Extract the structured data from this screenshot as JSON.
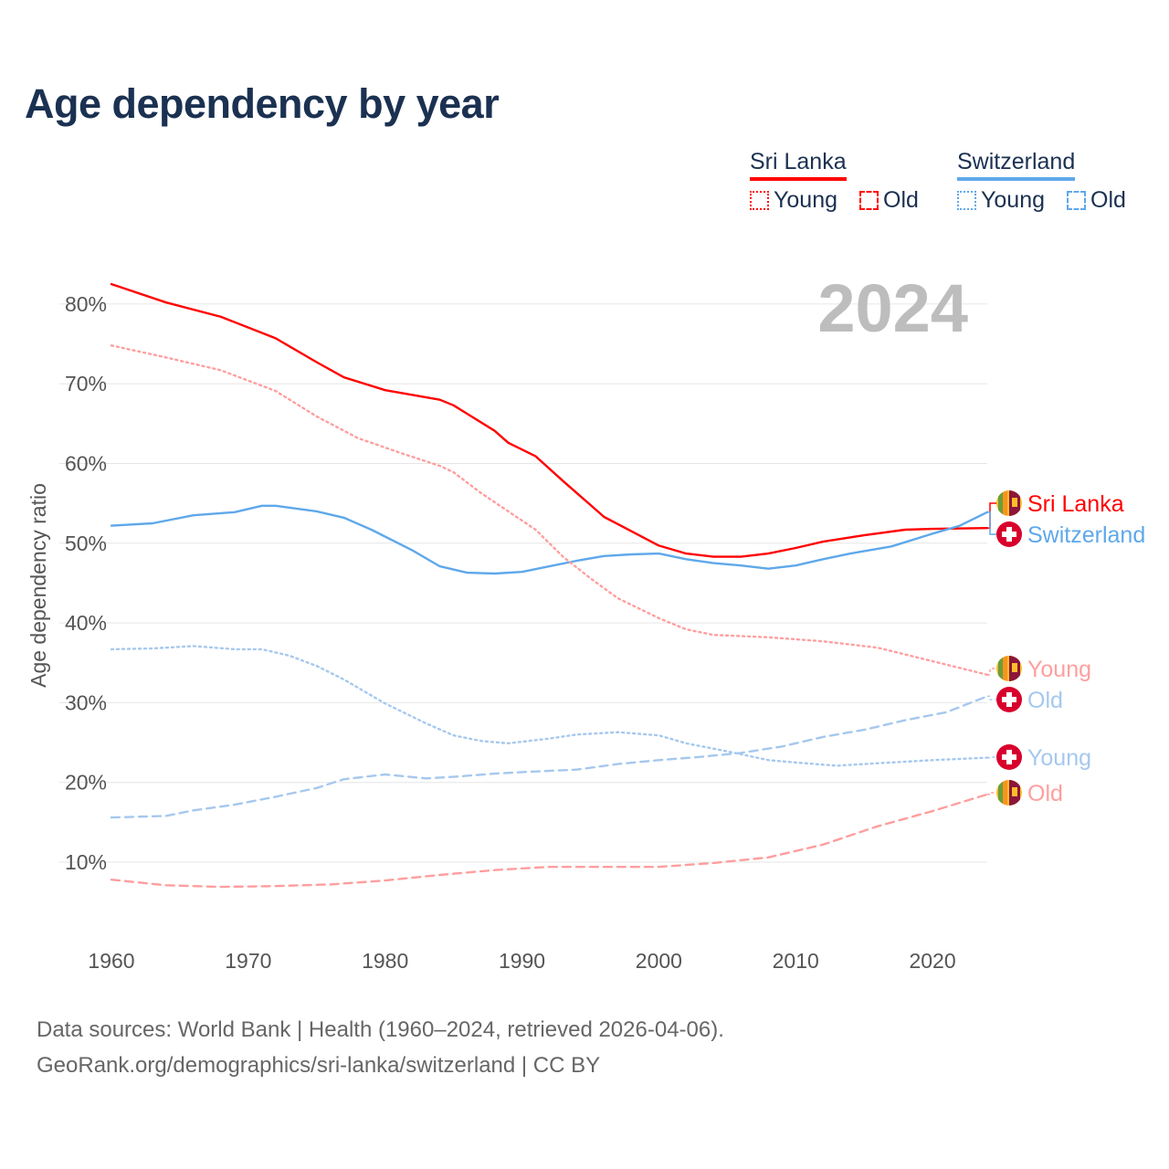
{
  "title": "Age dependency by year",
  "legend": {
    "groups": [
      {
        "name": "Sri Lanka",
        "color": "#ff0000",
        "items": [
          "Young",
          "Old"
        ]
      },
      {
        "name": "Switzerland",
        "color": "#5fa8ea",
        "items": [
          "Young",
          "Old"
        ]
      }
    ]
  },
  "footer": {
    "line1": "Data sources: World Bank | Health (1960–2024, retrieved 2026-04-06).",
    "line2": "GeoRank.org/demographics/sri-lanka/switzerland | CC BY"
  },
  "chart_data": {
    "type": "line",
    "title": "Age dependency by year",
    "ylabel": "Age dependency ratio",
    "xlabel": "",
    "year_label": "2024",
    "xlim": [
      1960,
      2024
    ],
    "ylim": [
      0,
      85
    ],
    "x_ticks": [
      1960,
      1970,
      1980,
      1990,
      2000,
      2010,
      2020
    ],
    "y_ticks": [
      10,
      20,
      30,
      40,
      50,
      60,
      70,
      80
    ],
    "y_tick_labels": [
      "10%",
      "20%",
      "30%",
      "40%",
      "50%",
      "60%",
      "70%",
      "80%"
    ],
    "grid": true,
    "series": [
      {
        "name": "Sri Lanka",
        "label": "Sri Lanka",
        "country": "sri-lanka",
        "style": "solid",
        "color": "#ff0000",
        "x": [
          1960,
          1964,
          1968,
          1972,
          1975,
          1977,
          1980,
          1984,
          1985,
          1988,
          1989,
          1991,
          1993,
          1995,
          1996,
          1998,
          2000,
          2002,
          2004,
          2006,
          2008,
          2010,
          2012,
          2015,
          2018,
          2020,
          2024
        ],
        "y": [
          82.5,
          80.2,
          78.4,
          75.7,
          72.7,
          70.8,
          69.2,
          68.0,
          67.3,
          64.1,
          62.6,
          60.9,
          57.8,
          54.8,
          53.3,
          51.5,
          49.7,
          48.7,
          48.3,
          48.3,
          48.7,
          49.4,
          50.2,
          51.0,
          51.7,
          51.8,
          51.9
        ]
      },
      {
        "name": "Switzerland",
        "label": "Switzerland",
        "country": "switzerland",
        "style": "solid",
        "color": "#5fa8ea",
        "x": [
          1960,
          1963,
          1966,
          1969,
          1971,
          1972,
          1975,
          1977,
          1979,
          1982,
          1984,
          1986,
          1988,
          1990,
          1992,
          1994,
          1996,
          1998,
          2000,
          2002,
          2004,
          2006,
          2008,
          2010,
          2012,
          2014,
          2017,
          2020,
          2022,
          2024
        ],
        "y": [
          52.2,
          52.5,
          53.5,
          53.9,
          54.7,
          54.7,
          54.0,
          53.2,
          51.7,
          49.1,
          47.1,
          46.3,
          46.2,
          46.4,
          47.1,
          47.8,
          48.4,
          48.6,
          48.7,
          48.0,
          47.5,
          47.2,
          46.8,
          47.2,
          48.0,
          48.7,
          49.6,
          51.2,
          52.2,
          53.9
        ]
      },
      {
        "name": "Sri Lanka Young",
        "label": "Young",
        "country": "sri-lanka",
        "style": "dotted",
        "color": "#ff9e9e",
        "x": [
          1960,
          1964,
          1968,
          1972,
          1975,
          1978,
          1981,
          1984,
          1985,
          1987,
          1989,
          1991,
          1993,
          1995,
          1997,
          2000,
          2002,
          2004,
          2008,
          2012,
          2016,
          2020,
          2024
        ],
        "y": [
          74.8,
          73.3,
          71.7,
          69.1,
          65.9,
          63.2,
          61.4,
          59.7,
          58.9,
          56.3,
          54.0,
          51.7,
          48.3,
          45.6,
          43.1,
          40.6,
          39.2,
          38.5,
          38.2,
          37.7,
          36.9,
          35.2,
          33.5
        ]
      },
      {
        "name": "Switzerland Old",
        "label": "Old",
        "country": "switzerland",
        "style": "dashed",
        "color": "#a5c8ee",
        "x": [
          1960,
          1964,
          1966,
          1969,
          1972,
          1975,
          1977,
          1980,
          1983,
          1985,
          1988,
          1990,
          1994,
          1997,
          2000,
          2003,
          2006,
          2009,
          2012,
          2015,
          2018,
          2021,
          2024
        ],
        "y": [
          15.6,
          15.8,
          16.5,
          17.2,
          18.2,
          19.3,
          20.4,
          21.0,
          20.5,
          20.7,
          21.1,
          21.3,
          21.6,
          22.3,
          22.8,
          23.2,
          23.7,
          24.5,
          25.7,
          26.6,
          27.8,
          28.8,
          30.8
        ]
      },
      {
        "name": "Switzerland Young",
        "label": "Young",
        "country": "switzerland",
        "style": "dotted",
        "color": "#a5c8ee",
        "x": [
          1960,
          1963,
          1966,
          1969,
          1971,
          1973,
          1975,
          1977,
          1980,
          1983,
          1985,
          1987,
          1989,
          1992,
          1994,
          1997,
          2000,
          2002,
          2005,
          2008,
          2010,
          2013,
          2016,
          2020,
          2024
        ],
        "y": [
          36.7,
          36.8,
          37.1,
          36.7,
          36.7,
          35.9,
          34.6,
          32.9,
          29.9,
          27.4,
          25.9,
          25.2,
          24.9,
          25.5,
          26.0,
          26.3,
          25.9,
          24.9,
          23.9,
          22.8,
          22.5,
          22.1,
          22.4,
          22.8,
          23.1
        ]
      },
      {
        "name": "Sri Lanka Old",
        "label": "Old",
        "country": "sri-lanka",
        "style": "dashed",
        "color": "#ff9e9e",
        "x": [
          1960,
          1964,
          1968,
          1972,
          1976,
          1980,
          1984,
          1988,
          1992,
          1996,
          2000,
          2004,
          2008,
          2012,
          2016,
          2020,
          2024
        ],
        "y": [
          7.8,
          7.1,
          6.9,
          7.0,
          7.2,
          7.7,
          8.4,
          9.0,
          9.4,
          9.4,
          9.4,
          9.9,
          10.6,
          12.2,
          14.5,
          16.4,
          18.5
        ]
      }
    ]
  }
}
